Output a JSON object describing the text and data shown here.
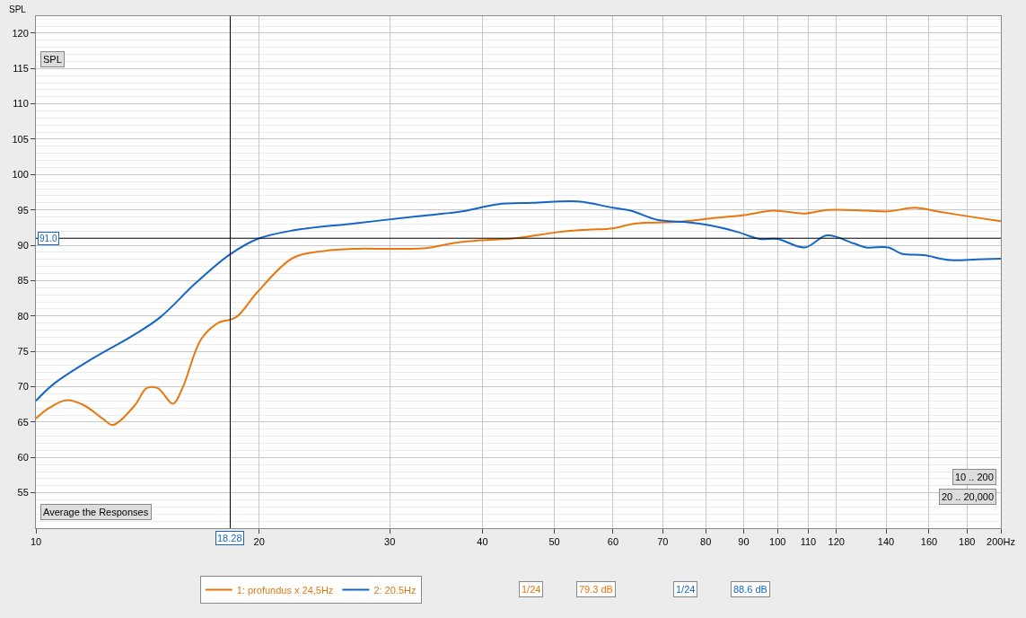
{
  "chart_data": {
    "type": "line",
    "ylabel": "SPL",
    "log": "x",
    "xlim": [
      10,
      200
    ],
    "xticks": [
      10,
      20,
      30,
      40,
      50,
      60,
      70,
      80,
      90,
      100,
      110,
      120,
      140,
      160,
      180,
      {
        "value": 200,
        "label": "200Hz"
      }
    ],
    "ylim": [
      50,
      122.4
    ],
    "yticks": [
      55,
      60,
      65,
      70,
      75,
      80,
      85,
      90,
      95,
      100,
      105,
      110,
      115,
      120
    ],
    "grid": true,
    "legend": "bottom",
    "marker": "none",
    "line_style": "solid",
    "series": [
      {
        "name": "1: profundus x 24,5Hz",
        "color": "#e8770f",
        "x": [
          10,
          10.42,
          11.0,
          11.6,
          12.3,
          12.7,
          13.6,
          14.1,
          14.6,
          15.3,
          15.76,
          16.7,
          17.6,
          18.6,
          19.9,
          22.2,
          24.5,
          26.9,
          30.4,
          33.6,
          36.5,
          39.7,
          44.2,
          50.9,
          55.4,
          60.0,
          64.4,
          73.0,
          81.2,
          90.7,
          98.6,
          108.8,
          116.6,
          131.6,
          141.1,
          153,
          166,
          185.8,
          200
        ],
        "values": [
          65.5,
          67.0,
          68.1,
          67.4,
          65.5,
          64.6,
          67.4,
          69.8,
          69.8,
          67.6,
          69.8,
          76.7,
          79.0,
          79.8,
          83.4,
          88.2,
          89.2,
          89.5,
          89.5,
          89.6,
          90.3,
          90.7,
          91.0,
          91.9,
          92.2,
          92.4,
          93.1,
          93.3,
          93.8,
          94.3,
          94.9,
          94.5,
          95.0,
          94.9,
          94.8,
          95.3,
          94.7,
          93.9,
          93.4
        ]
      },
      {
        "name": "2: 20.5Hz",
        "color": "#1565c8",
        "x": [
          10,
          10.57,
          11.8,
          13.54,
          14.7,
          16.4,
          18.2,
          19.9,
          22.2,
          26.9,
          32.7,
          37.6,
          41.9,
          46.8,
          53.8,
          60.0,
          63.4,
          68.8,
          74.8,
          81.2,
          88.2,
          94.5,
          100,
          108.8,
          116.6,
          126.4,
          131.6,
          141.1,
          147.0,
          157.4,
          171.1,
          185.8,
          200
        ],
        "values": [
          68.0,
          70.4,
          73.7,
          77.3,
          79.8,
          84.6,
          88.6,
          90.9,
          92.1,
          93.1,
          94.1,
          94.8,
          95.8,
          96.0,
          96.2,
          95.3,
          94.9,
          93.6,
          93.3,
          92.8,
          91.9,
          90.9,
          90.9,
          89.7,
          91.4,
          90.3,
          89.7,
          89.7,
          88.8,
          88.6,
          87.9,
          88.0,
          88.1
        ]
      }
    ],
    "ref_lines": [
      {
        "axis": "x",
        "value": 18.28,
        "label": "18.28",
        "color": "#000000"
      },
      {
        "axis": "y",
        "value": 91.0,
        "label": "91.0",
        "color": "#000000"
      }
    ],
    "annotations": [
      "SPL",
      "Average the Responses",
      "10 .. 200",
      "20 .. 20,000",
      "1/24",
      "79.3 dB",
      "1/24",
      "88.6 dB"
    ]
  }
}
